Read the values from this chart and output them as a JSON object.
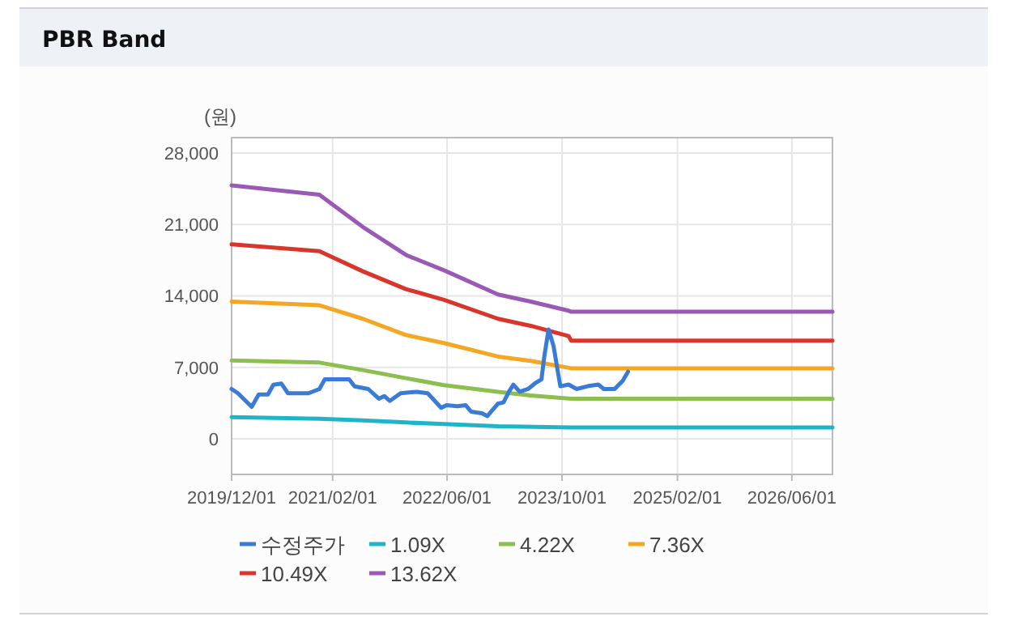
{
  "chart_data": {
    "type": "line",
    "title": "PBR Band",
    "ylabel": "(원)",
    "xlim": [
      "2019-12-01",
      "2026-11-20"
    ],
    "ylim": [
      -3500,
      29500
    ],
    "xticks": [
      {
        "value": "2019-12-01",
        "label": "2019/12/01"
      },
      {
        "value": "2021-02-01",
        "label": "2021/02/01"
      },
      {
        "value": "2022-06-01",
        "label": "2022/06/01"
      },
      {
        "value": "2023-10-01",
        "label": "2023/10/01"
      },
      {
        "value": "2025-02-01",
        "label": "2025/02/01"
      },
      {
        "value": "2026-06-01",
        "label": "2026/06/01"
      }
    ],
    "yticks": [
      0,
      {
        "value": 7000,
        "label": "7,000"
      },
      {
        "value": 14000,
        "label": "14,000"
      },
      {
        "value": 21000,
        "label": "21,000"
      },
      {
        "value": 28000,
        "label": "28,000"
      }
    ],
    "grid": true,
    "legend": "bottom",
    "series": [
      {
        "name": "수정주가",
        "color": "#3a7bd5",
        "x": [
          "2019-12-01",
          "2019-12-28",
          "2020-02-24",
          "2020-03-25",
          "2020-05-03",
          "2020-05-26",
          "2020-06-29",
          "2020-07-27",
          "2020-10-22",
          "2020-12-07",
          "2020-12-30",
          "2021-04-12",
          "2021-05-05",
          "2021-07-02",
          "2021-08-16",
          "2021-09-08",
          "2021-10-01",
          "2021-11-16",
          "2022-01-24",
          "2022-03-11",
          "2022-05-07",
          "2022-05-30",
          "2022-07-15",
          "2022-08-19",
          "2022-09-11",
          "2022-10-27",
          "2022-11-19",
          "2022-12-12",
          "2023-01-03",
          "2023-01-26",
          "2023-02-18",
          "2023-03-09",
          "2023-04-05",
          "2023-05-10",
          "2023-06-13",
          "2023-07-06",
          "2023-07-18",
          "2023-08-05",
          "2023-08-26",
          "2023-09-18",
          "2023-09-24",
          "2023-10-29",
          "2023-12-02",
          "2024-01-17",
          "2024-03-03",
          "2024-03-26",
          "2024-05-11",
          "2024-06-14",
          "2024-07-07"
        ],
        "values": [
          4870,
          4450,
          3120,
          4340,
          4340,
          5290,
          5400,
          4450,
          4450,
          4870,
          5820,
          5820,
          5130,
          4870,
          3920,
          4180,
          3700,
          4450,
          4600,
          4450,
          3020,
          3280,
          3180,
          3280,
          2650,
          2490,
          2220,
          2860,
          3440,
          3550,
          4600,
          5290,
          4600,
          4870,
          5500,
          5820,
          8050,
          10700,
          9100,
          5930,
          5140,
          5300,
          4870,
          5140,
          5300,
          4870,
          4870,
          5670,
          6570
        ]
      },
      {
        "name": "1.09X",
        "color": "#1fb5c9",
        "x": [
          "2019-12-01",
          "2020-12-07",
          "2021-06-09",
          "2021-12-09",
          "2022-05-19",
          "2023-01-03",
          "2023-11-09",
          "2026-11-20"
        ],
        "values": [
          2120,
          1960,
          1800,
          1590,
          1430,
          1220,
          1110,
          1110
        ]
      },
      {
        "name": "4.22X",
        "color": "#8cbf4f",
        "x": [
          "2019-12-01",
          "2020-12-07",
          "2021-06-09",
          "2021-12-09",
          "2022-05-19",
          "2023-01-03",
          "2023-05-21",
          "2023-11-09",
          "2026-11-20"
        ],
        "values": [
          7670,
          7460,
          6720,
          5930,
          5240,
          4600,
          4230,
          3920,
          3920
        ]
      },
      {
        "name": "7.36X",
        "color": "#f5a623",
        "x": [
          "2019-12-01",
          "2020-12-07",
          "2021-06-09",
          "2021-12-09",
          "2022-05-19",
          "2023-01-03",
          "2023-05-21",
          "2023-11-09",
          "2026-11-20"
        ],
        "values": [
          13440,
          13070,
          11750,
          10160,
          9370,
          8050,
          7620,
          6900,
          6900
        ]
      },
      {
        "name": "10.49X",
        "color": "#d9352a",
        "x": [
          "2019-12-01",
          "2020-12-07",
          "2021-06-09",
          "2021-12-09",
          "2022-05-19",
          "2023-01-03",
          "2023-05-21",
          "2023-10-29",
          "2023-11-09",
          "2026-11-20"
        ],
        "values": [
          19050,
          18370,
          16400,
          14660,
          13600,
          11750,
          11060,
          10060,
          9600,
          9600
        ]
      },
      {
        "name": "13.62X",
        "color": "#9b59b6",
        "x": [
          "2019-12-01",
          "2020-12-07",
          "2021-06-09",
          "2021-12-09",
          "2022-05-19",
          "2023-01-03",
          "2023-05-21",
          "2023-10-29",
          "2023-11-09",
          "2026-11-20"
        ],
        "values": [
          24820,
          23900,
          20750,
          18000,
          16500,
          14130,
          13440,
          12540,
          12440,
          12440
        ]
      }
    ]
  }
}
